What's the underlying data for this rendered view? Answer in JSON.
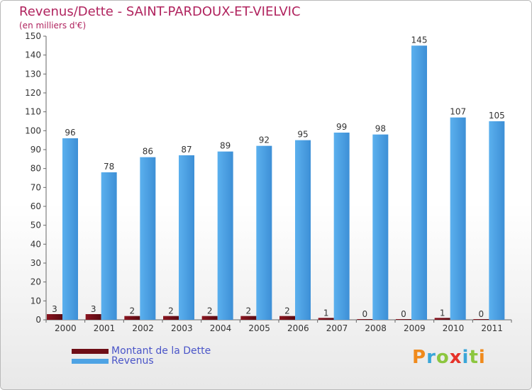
{
  "title": "Revenus/Dette - SAINT-PARDOUX-ET-VIELVIC",
  "subtitle": "(en milliers d'€)",
  "logo": "Proxiti",
  "colors": {
    "debt": "#6e0d16",
    "revenue": "#4ea3e4",
    "title": "#b0235e",
    "legend_text": "#4a55c8"
  },
  "legend": [
    {
      "label": "Montant de la Dette",
      "color": "#6e0d16"
    },
    {
      "label": "Revenus",
      "color": "#4ea3e4"
    }
  ],
  "chart_data": {
    "type": "bar",
    "categories": [
      "2000",
      "2001",
      "2002",
      "2003",
      "2004",
      "2005",
      "2006",
      "2007",
      "2008",
      "2009",
      "2010",
      "2011"
    ],
    "series": [
      {
        "name": "Montant de la Dette",
        "values": [
          3,
          3,
          2,
          2,
          2,
          2,
          2,
          1,
          0,
          0,
          1,
          0
        ]
      },
      {
        "name": "Revenus",
        "values": [
          96,
          78,
          86,
          87,
          89,
          92,
          95,
          99,
          98,
          145,
          107,
          105
        ]
      }
    ],
    "ylim": [
      0,
      150
    ],
    "yticks": [
      0,
      10,
      20,
      30,
      40,
      50,
      60,
      70,
      80,
      90,
      100,
      110,
      120,
      130,
      140,
      150
    ],
    "legend_position": "bottom-left",
    "grid": false
  }
}
